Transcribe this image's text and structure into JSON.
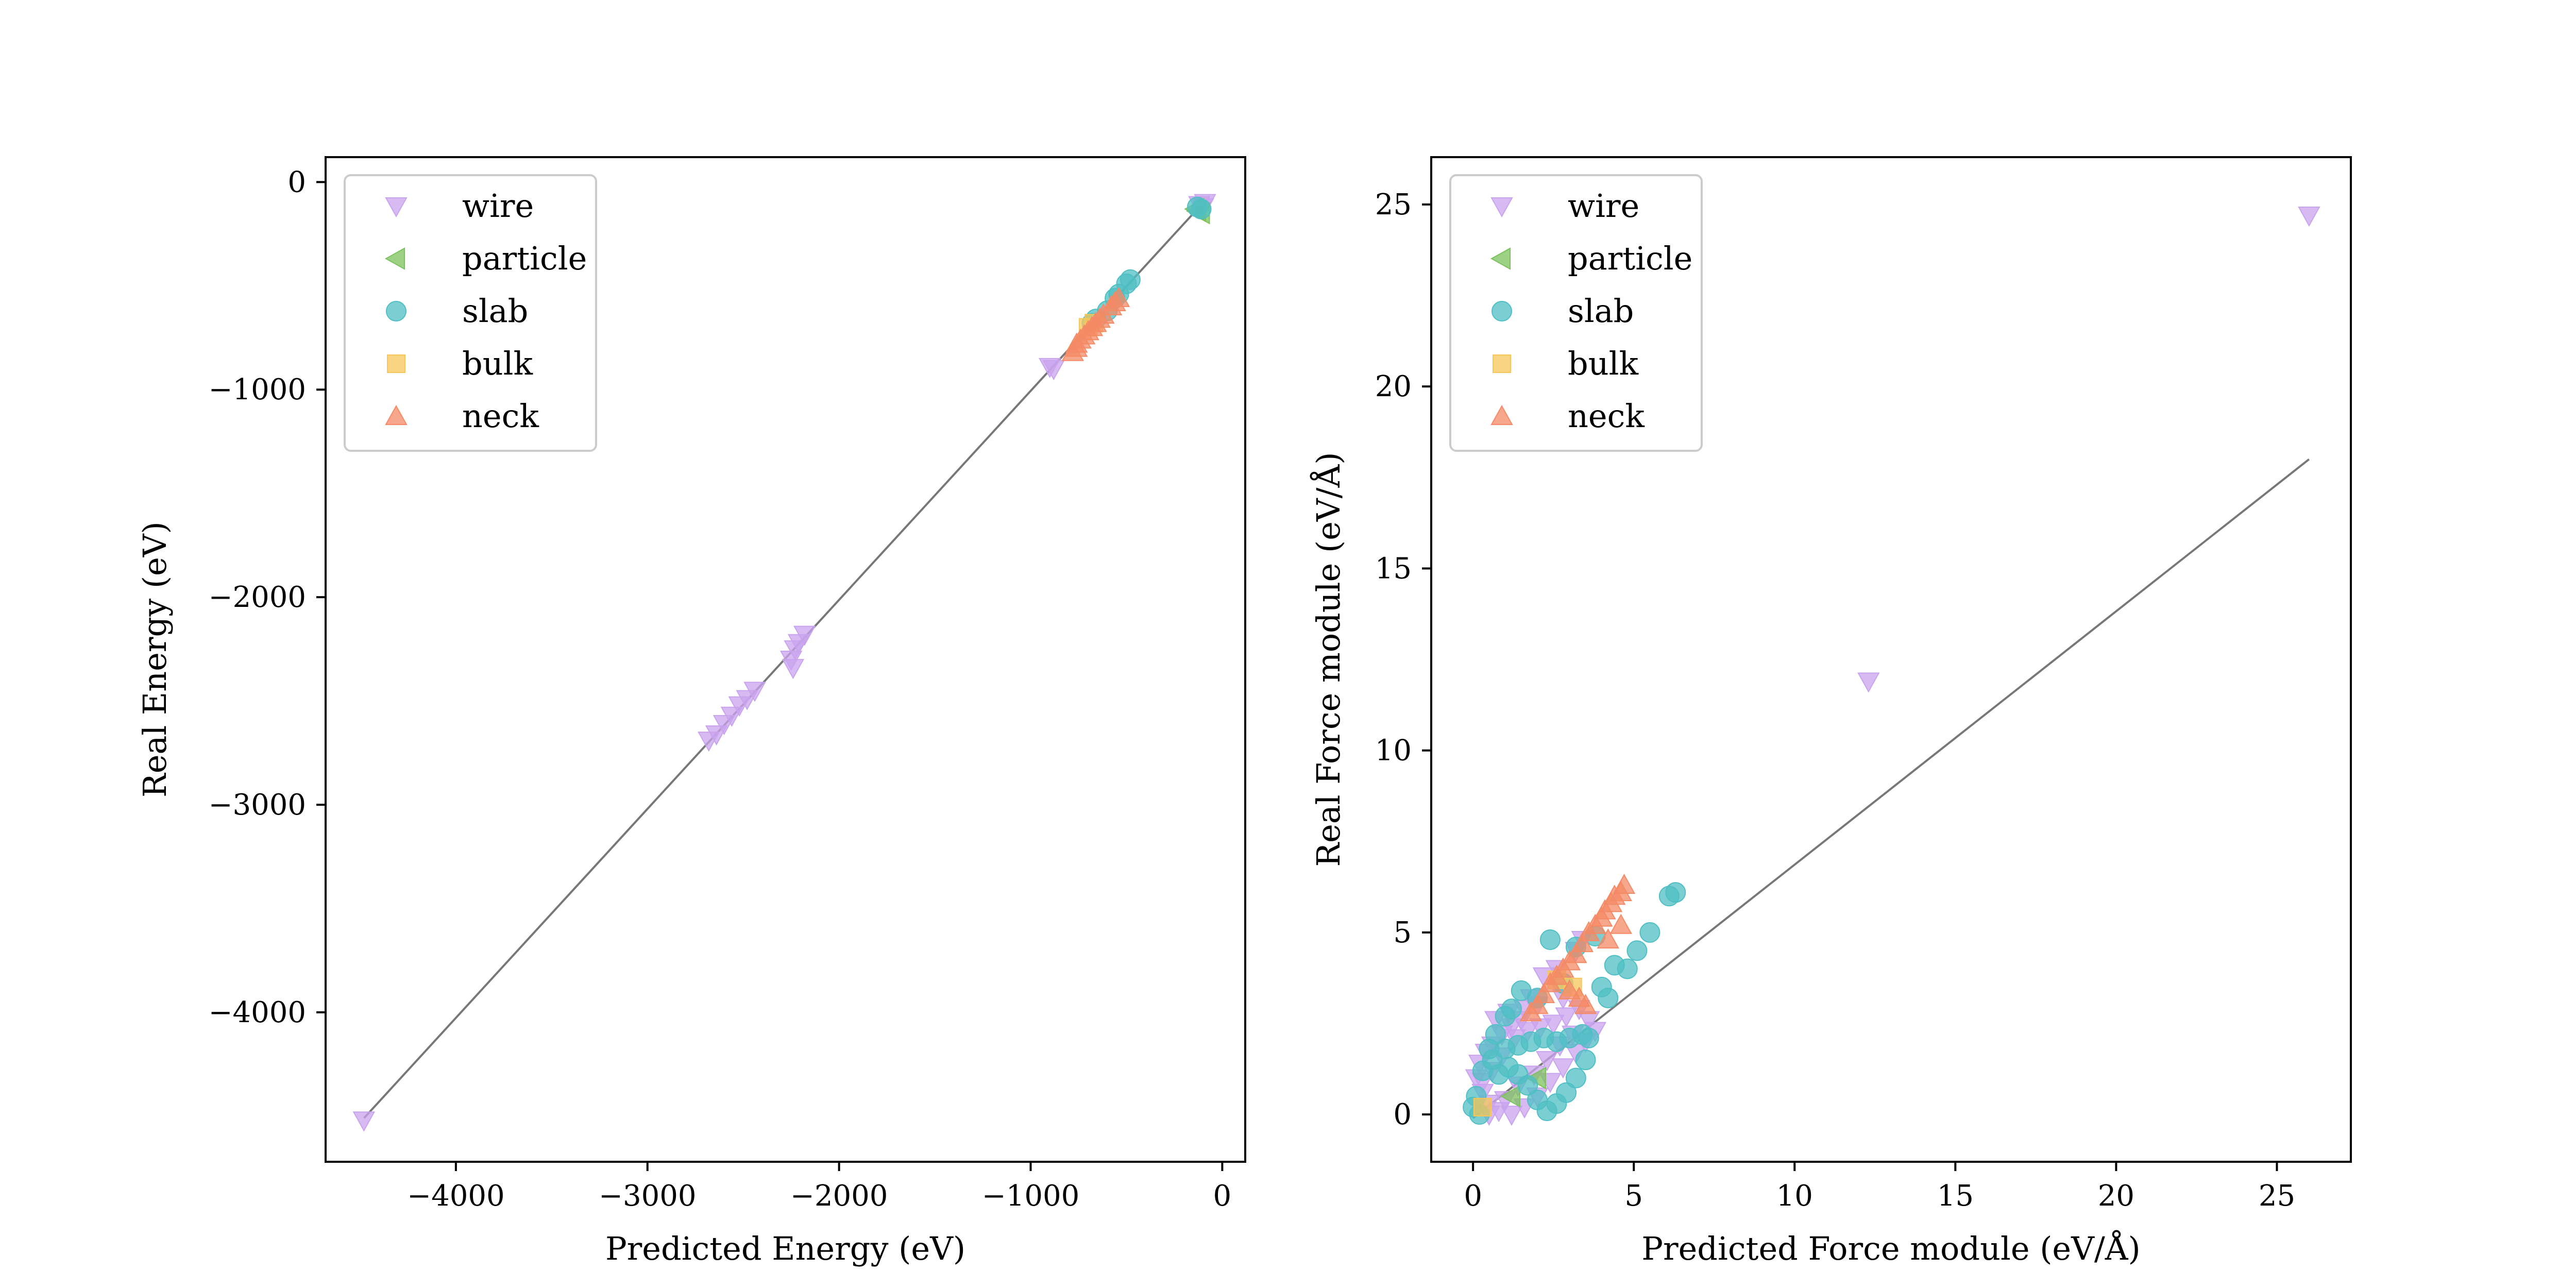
{
  "colors": {
    "wire": "#c9a3ee",
    "particle": "#7cc25c",
    "slab": "#4fbfc4",
    "bulk": "#f7c65a",
    "neck": "#f48a66",
    "parity_line": "#777777"
  },
  "chart_data": [
    {
      "type": "scatter",
      "title": "",
      "xlabel": "Predicted Energy (eV)",
      "ylabel": "Real Energy (eV)",
      "xlim": [
        -4680,
        120
      ],
      "ylim": [
        -4720,
        120
      ],
      "xticks": [
        -4000,
        -3000,
        -2000,
        -1000,
        0
      ],
      "xtick_labels": [
        "−4000",
        "−3000",
        "−2000",
        "−1000",
        "0"
      ],
      "yticks": [
        -4000,
        -3000,
        -2000,
        -1000,
        0
      ],
      "ytick_labels": [
        "−4000",
        "−3000",
        "−2000",
        "−1000",
        "0"
      ],
      "grid": false,
      "legend_position": "top-left",
      "parity_line": [
        [
          -4480,
          -4510
        ],
        [
          -100,
          -100
        ]
      ],
      "series": [
        {
          "name": "wire",
          "marker": "triangle-down",
          "points": [
            [
              -4480,
              -4520
            ],
            [
              -2680,
              -2690
            ],
            [
              -2640,
              -2660
            ],
            [
              -2600,
              -2610
            ],
            [
              -2560,
              -2570
            ],
            [
              -2520,
              -2520
            ],
            [
              -2480,
              -2490
            ],
            [
              -2440,
              -2450
            ],
            [
              -2250,
              -2300
            ],
            [
              -2230,
              -2250
            ],
            [
              -2210,
              -2220
            ],
            [
              -2180,
              -2180
            ],
            [
              -2240,
              -2340
            ],
            [
              -900,
              -890
            ],
            [
              -880,
              -900
            ],
            [
              -120,
              -110
            ],
            [
              -100,
              -120
            ],
            [
              -90,
              -100
            ]
          ]
        },
        {
          "name": "particle",
          "marker": "triangle-left",
          "points": [
            [
              -130,
              -140
            ],
            [
              -110,
              -150
            ],
            [
              -140,
              -130
            ]
          ]
        },
        {
          "name": "slab",
          "marker": "circle",
          "points": [
            [
              -480,
              -470
            ],
            [
              -500,
              -490
            ],
            [
              -540,
              -540
            ],
            [
              -560,
              -560
            ],
            [
              -600,
              -620
            ],
            [
              -660,
              -660
            ],
            [
              -680,
              -680
            ],
            [
              -130,
              -120
            ],
            [
              -110,
              -130
            ]
          ]
        },
        {
          "name": "bulk",
          "marker": "square",
          "points": [
            [
              -670,
              -680
            ],
            [
              -700,
              -700
            ]
          ]
        },
        {
          "name": "neck",
          "marker": "triangle-up",
          "points": [
            [
              -760,
              -780
            ],
            [
              -740,
              -760
            ],
            [
              -720,
              -740
            ],
            [
              -700,
              -720
            ],
            [
              -680,
              -700
            ],
            [
              -660,
              -680
            ],
            [
              -640,
              -660
            ],
            [
              -620,
              -640
            ],
            [
              -580,
              -600
            ],
            [
              -560,
              -580
            ],
            [
              -540,
              -560
            ],
            [
              -780,
              -820
            ],
            [
              -760,
              -800
            ]
          ]
        }
      ]
    },
    {
      "type": "scatter",
      "title": "",
      "xlabel": "Predicted Force module (eV/Å)",
      "ylabel": "Real Force module (eV/Å)",
      "xlim": [
        -1.3,
        27.3
      ],
      "ylim": [
        -1.3,
        26.3
      ],
      "xticks": [
        0,
        5,
        10,
        15,
        20,
        25
      ],
      "xtick_labels": [
        "0",
        "5",
        "10",
        "15",
        "20",
        "25"
      ],
      "yticks": [
        0,
        5,
        10,
        15,
        20,
        25
      ],
      "ytick_labels": [
        "0",
        "5",
        "10",
        "15",
        "20",
        "25"
      ],
      "grid": false,
      "legend_position": "top-left",
      "parity_line": [
        [
          0,
          -0.1
        ],
        [
          26,
          18
        ]
      ],
      "series": [
        {
          "name": "wire",
          "marker": "triangle-down",
          "points": [
            [
              26,
              24.7
            ],
            [
              12.3,
              11.9
            ],
            [
              2.2,
              3.8
            ],
            [
              2.6,
              4.0
            ],
            [
              3.2,
              4.5
            ],
            [
              3.4,
              4.8
            ],
            [
              1.8,
              3.2
            ],
            [
              1.5,
              2.6
            ],
            [
              1.2,
              2.4
            ],
            [
              0.9,
              2.2
            ],
            [
              0.6,
              1.9
            ],
            [
              0.4,
              1.7
            ],
            [
              0.2,
              1.4
            ],
            [
              0.1,
              1.0
            ],
            [
              0.3,
              0.6
            ],
            [
              0.5,
              0.3
            ],
            [
              0.8,
              0.1
            ],
            [
              1.2,
              0.0
            ],
            [
              1.6,
              0.2
            ],
            [
              2.0,
              0.5
            ],
            [
              2.4,
              0.9
            ],
            [
              2.8,
              1.3
            ],
            [
              3.2,
              1.7
            ],
            [
              3.5,
              2.0
            ],
            [
              3.8,
              2.3
            ],
            [
              3.6,
              2.6
            ],
            [
              3.3,
              2.9
            ],
            [
              2.9,
              2.7
            ],
            [
              2.5,
              2.5
            ],
            [
              2.1,
              2.4
            ],
            [
              1.7,
              2.3
            ],
            [
              1.3,
              2.1
            ],
            [
              0.9,
              1.6
            ],
            [
              0.6,
              1.2
            ],
            [
              0.3,
              0.9
            ],
            [
              0.5,
              0.0
            ],
            [
              1.0,
              0.4
            ],
            [
              1.4,
              0.8
            ],
            [
              1.9,
              1.1
            ],
            [
              2.3,
              1.5
            ],
            [
              2.7,
              1.9
            ],
            [
              3.1,
              2.2
            ],
            [
              0.7,
              2.6
            ],
            [
              1.1,
              2.8
            ],
            [
              1.6,
              2.9
            ],
            [
              2.0,
              3.0
            ],
            [
              2.8,
              3.2
            ]
          ]
        },
        {
          "name": "particle",
          "marker": "triangle-left",
          "points": [
            [
              1.2,
              0.5
            ],
            [
              2.0,
              1.0
            ]
          ]
        },
        {
          "name": "slab",
          "marker": "circle",
          "points": [
            [
              6.3,
              6.1
            ],
            [
              6.1,
              6.0
            ],
            [
              5.5,
              5.0
            ],
            [
              5.1,
              4.5
            ],
            [
              4.8,
              4.0
            ],
            [
              4.4,
              4.1
            ],
            [
              4.0,
              3.5
            ],
            [
              3.2,
              4.6
            ],
            [
              2.4,
              4.8
            ],
            [
              2.8,
              3.6
            ],
            [
              2.0,
              3.2
            ],
            [
              1.5,
              3.4
            ],
            [
              1.2,
              2.9
            ],
            [
              1.0,
              2.7
            ],
            [
              0.7,
              2.2
            ],
            [
              0.5,
              1.8
            ],
            [
              0.3,
              1.2
            ],
            [
              0.1,
              0.5
            ],
            [
              0.0,
              0.2
            ],
            [
              0.2,
              0.0
            ],
            [
              0.6,
              1.5
            ],
            [
              1.0,
              1.8
            ],
            [
              1.4,
              1.9
            ],
            [
              1.8,
              2.0
            ],
            [
              2.2,
              2.1
            ],
            [
              2.6,
              2.0
            ],
            [
              3.0,
              2.1
            ],
            [
              3.4,
              2.2
            ],
            [
              3.6,
              2.1
            ],
            [
              3.5,
              1.5
            ],
            [
              3.2,
              1.0
            ],
            [
              2.9,
              0.6
            ],
            [
              2.6,
              0.3
            ],
            [
              2.3,
              0.1
            ],
            [
              2.0,
              0.4
            ],
            [
              1.7,
              0.8
            ],
            [
              1.4,
              1.1
            ],
            [
              1.1,
              1.3
            ],
            [
              0.8,
              1.1
            ],
            [
              3.8,
              4.9
            ],
            [
              4.2,
              3.2
            ]
          ]
        },
        {
          "name": "bulk",
          "marker": "square",
          "points": [
            [
              2.6,
              3.7
            ],
            [
              3.1,
              3.5
            ],
            [
              0.3,
              0.2
            ]
          ]
        },
        {
          "name": "neck",
          "marker": "triangle-up",
          "points": [
            [
              4.7,
              6.3
            ],
            [
              4.6,
              6.1
            ],
            [
              4.4,
              6.0
            ],
            [
              4.3,
              5.8
            ],
            [
              4.1,
              5.6
            ],
            [
              4.0,
              5.4
            ],
            [
              3.8,
              5.2
            ],
            [
              3.6,
              5.0
            ],
            [
              3.4,
              4.7
            ],
            [
              3.2,
              4.4
            ],
            [
              3.0,
              4.2
            ],
            [
              2.8,
              4.0
            ],
            [
              2.6,
              3.8
            ],
            [
              2.4,
              3.6
            ],
            [
              3.0,
              3.4
            ],
            [
              3.3,
              3.2
            ],
            [
              3.5,
              3.0
            ],
            [
              4.6,
              5.2
            ],
            [
              4.2,
              4.8
            ],
            [
              2.2,
              3.3
            ],
            [
              2.0,
              3.0
            ],
            [
              1.8,
              2.8
            ]
          ]
        }
      ]
    }
  ]
}
